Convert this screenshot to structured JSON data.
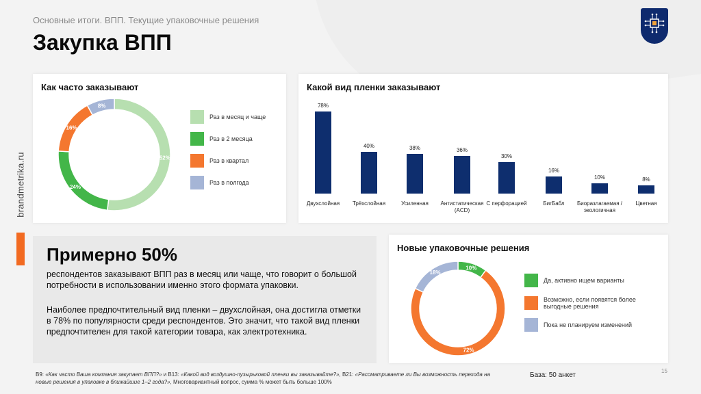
{
  "header": {
    "subtitle": "Основные итоги. ВПП. Текущие упаковочные решения",
    "title": "Закупка ВПП",
    "brand": "brandmetrika.ru"
  },
  "colors": {
    "navy": "#0e2e6e",
    "light_green": "#b7dfb0",
    "green": "#43b649",
    "orange": "#f4772f",
    "blue_gray": "#a5b5d6",
    "accent_orange": "#f26a21"
  },
  "chart_data": [
    {
      "type": "pie",
      "title": "Как часто заказывают",
      "categories": [
        "Раз в месяц и чаще",
        "Раз в 2 месяца",
        "Раз в квартал",
        "Раз в полгода"
      ],
      "values": [
        52,
        24,
        16,
        8
      ],
      "labels": [
        "52%",
        "24%",
        "16%",
        "8%"
      ],
      "colors": [
        "#b7dfb0",
        "#43b649",
        "#f4772f",
        "#a5b5d6"
      ],
      "legend": "right"
    },
    {
      "type": "bar",
      "title": "Какой вид пленки заказывают",
      "categories": [
        "Двухслойная",
        "Трёхслойная",
        "Усиленная",
        "Антистатическая (ACD)",
        "С перфорацией",
        "БигБабл",
        "Биоразлагаемая / экологичная",
        "Цветная"
      ],
      "values": [
        78,
        40,
        38,
        36,
        30,
        16,
        10,
        8
      ],
      "labels": [
        "78%",
        "40%",
        "38%",
        "36%",
        "30%",
        "16%",
        "10%",
        "8%"
      ],
      "ylim": [
        0,
        80
      ],
      "color": "#0e2e6e"
    },
    {
      "type": "pie",
      "title": "Новые упаковочные решения",
      "categories": [
        "Да, активно ищем варианты",
        "Возможно, если появятся более выгодные решения",
        "Пока не планируем изменений"
      ],
      "values": [
        10,
        72,
        18
      ],
      "labels": [
        "10%",
        "72%",
        "18%"
      ],
      "colors": [
        "#43b649",
        "#f4772f",
        "#a5b5d6"
      ],
      "legend": "right"
    }
  ],
  "summary": {
    "headline": "Примерно 50%",
    "p1": "респондентов заказывают ВПП раз в месяц или чаще, что говорит о большой потребности в использовании именно этого формата упаковки.",
    "p2": "Наиболее предпочтительный вид пленки – двухслойная, она достигла отметки в 78% по популярности среди респондентов. Это значит, что такой вид пленки предпочтителен для такой категории товара, как электротехника."
  },
  "footer": {
    "note_a": "В9: ",
    "note_b": "«Как часто Ваша компания закупает ВПП?»",
    "note_c": " и В13: ",
    "note_d": "«Какой вид воздушно-пузырьковой пленки вы заказывайте?»",
    "note_e": ", В21: ",
    "note_f": "«Рассматриваете ли Вы возможность перехода на новые решения в упаковке в ближайшие 1–2 года?»",
    "note_g": ", Многовариантный вопрос, сумма % может быть больше 100%",
    "base": "База: 50 анкет",
    "page": "15"
  }
}
